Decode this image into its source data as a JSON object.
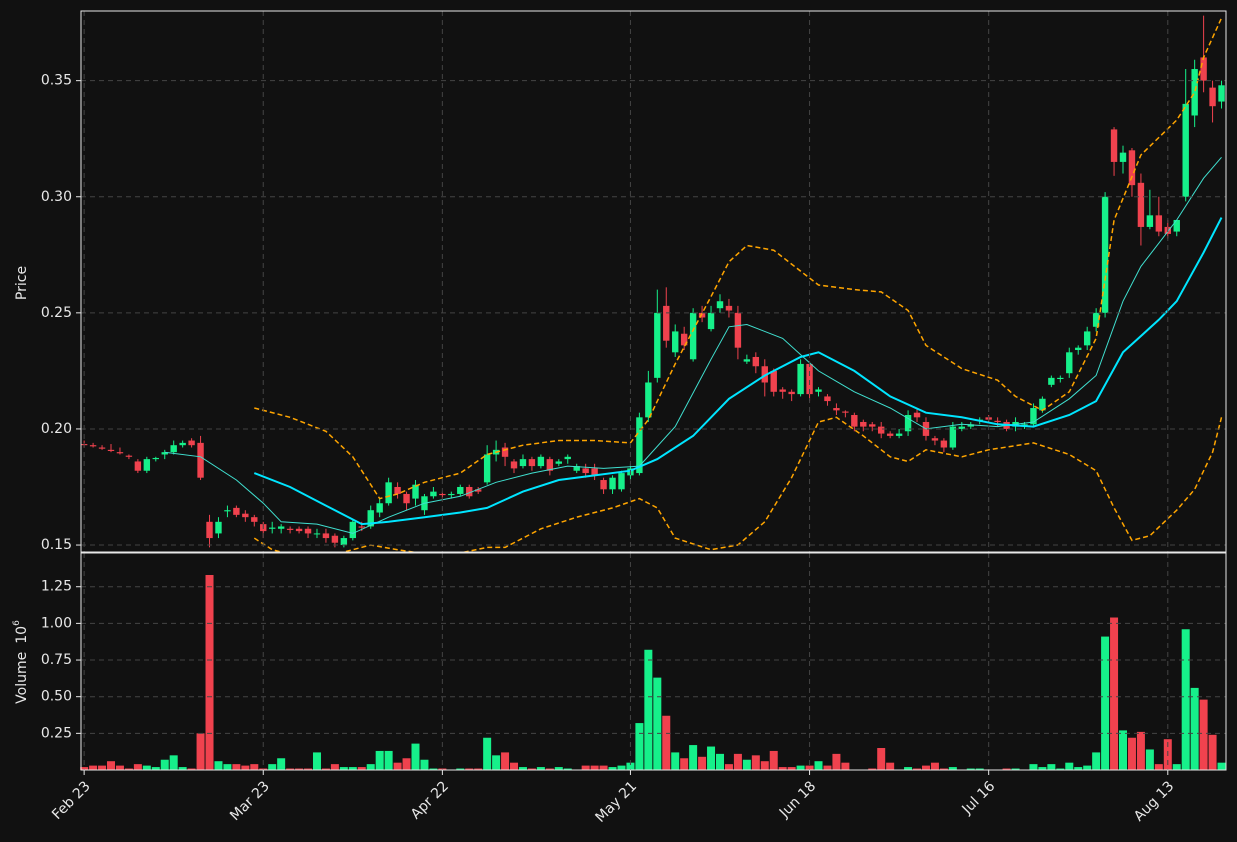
{
  "chart_data": {
    "type": "candlestick",
    "ylabel": "Price",
    "volume_label": "Volume",
    "volume_scale_base": "10",
    "volume_scale_exp": "6",
    "up_color": "#16f08a",
    "down_color": "#f0424e",
    "grid": true,
    "xlim": [
      -0.35,
      127.5
    ],
    "xticks": [
      {
        "value": 0,
        "label": "Feb 23"
      },
      {
        "value": 20,
        "label": "Mar 23"
      },
      {
        "value": 40,
        "label": "Apr 22"
      },
      {
        "value": 61,
        "label": "May 21"
      },
      {
        "value": 81,
        "label": "Jun 18"
      },
      {
        "value": 101,
        "label": "Jul 16"
      },
      {
        "value": 121,
        "label": "Aug 13"
      }
    ],
    "ylim": [
      0.147,
      0.38
    ],
    "yticks": [
      0.15,
      {
        "value": 0.2,
        "label": "0.20"
      },
      0.25,
      {
        "value": 0.3,
        "label": "0.30"
      },
      0.35
    ],
    "volume_ylim": [
      0,
      1.48
    ],
    "volume_yticks": [
      0.25,
      {
        "value": 0.5,
        "label": "0.50"
      },
      0.75,
      {
        "value": 1.0,
        "label": "1.00"
      },
      1.25
    ],
    "open": [
      0.1935,
      0.193,
      0.192,
      0.191,
      0.19,
      0.1885,
      0.186,
      0.182,
      0.187,
      0.189,
      0.19,
      0.193,
      0.195,
      0.194,
      0.16,
      0.155,
      0.1645,
      0.166,
      0.1635,
      0.162,
      0.159,
      0.157,
      0.157,
      0.157,
      0.157,
      0.157,
      0.155,
      0.155,
      0.154,
      0.15,
      0.153,
      0.158,
      0.158,
      0.164,
      0.168,
      0.175,
      0.172,
      0.17,
      0.165,
      0.171,
      0.172,
      0.1715,
      0.172,
      0.175,
      0.174,
      0.177,
      0.189,
      0.192,
      0.186,
      0.184,
      0.187,
      0.184,
      0.187,
      0.185,
      0.187,
      0.182,
      0.183,
      0.183,
      0.178,
      0.174,
      0.174,
      0.18,
      0.181,
      0.205,
      0.222,
      0.253,
      0.233,
      0.241,
      0.23,
      0.25,
      0.243,
      0.252,
      0.253,
      0.25,
      0.229,
      0.231,
      0.227,
      0.225,
      0.217,
      0.216,
      0.215,
      0.228,
      0.216,
      0.214,
      0.209,
      0.2075,
      0.206,
      0.203,
      0.202,
      0.201,
      0.198,
      0.197,
      0.199,
      0.207,
      0.203,
      0.196,
      0.195,
      0.192,
      0.2,
      0.201,
      0.2035,
      0.205,
      0.2035,
      0.203,
      0.201,
      0.2015,
      0.202,
      0.208,
      0.219,
      0.2215,
      0.224,
      0.234,
      0.236,
      0.244,
      0.25,
      0.329,
      0.315,
      0.32,
      0.306,
      0.287,
      0.292,
      0.287,
      0.285,
      0.3,
      0.335,
      0.36,
      0.347,
      0.341
    ],
    "high": [
      0.195,
      0.194,
      0.193,
      0.1935,
      0.192,
      0.189,
      0.187,
      0.188,
      0.188,
      0.191,
      0.195,
      0.195,
      0.196,
      0.197,
      0.163,
      0.162,
      0.167,
      0.167,
      0.165,
      0.163,
      0.16,
      0.16,
      0.159,
      0.158,
      0.158,
      0.158,
      0.157,
      0.157,
      0.155,
      0.154,
      0.161,
      0.16,
      0.167,
      0.17,
      0.179,
      0.177,
      0.173,
      0.178,
      0.172,
      0.175,
      0.173,
      0.173,
      0.176,
      0.176,
      0.175,
      0.193,
      0.195,
      0.194,
      0.187,
      0.189,
      0.188,
      0.189,
      0.188,
      0.187,
      0.189,
      0.185,
      0.185,
      0.185,
      0.179,
      0.18,
      0.182,
      0.185,
      0.207,
      0.225,
      0.26,
      0.261,
      0.245,
      0.244,
      0.252,
      0.253,
      0.253,
      0.258,
      0.256,
      0.253,
      0.232,
      0.233,
      0.23,
      0.226,
      0.218,
      0.217,
      0.23,
      0.229,
      0.218,
      0.215,
      0.211,
      0.208,
      0.207,
      0.204,
      0.203,
      0.203,
      0.199,
      0.2,
      0.208,
      0.209,
      0.205,
      0.197,
      0.196,
      0.203,
      0.203,
      0.203,
      0.205,
      0.206,
      0.205,
      0.204,
      0.205,
      0.203,
      0.211,
      0.214,
      0.223,
      0.223,
      0.235,
      0.236,
      0.244,
      0.252,
      0.302,
      0.33,
      0.322,
      0.321,
      0.31,
      0.303,
      0.3,
      0.29,
      0.29,
      0.355,
      0.359,
      0.378,
      0.35,
      0.35
    ],
    "low": [
      0.192,
      0.192,
      0.191,
      0.19,
      0.189,
      0.187,
      0.181,
      0.181,
      0.186,
      0.187,
      0.189,
      0.192,
      0.192,
      0.178,
      0.149,
      0.153,
      0.162,
      0.162,
      0.16,
      0.158,
      0.153,
      0.155,
      0.155,
      0.155,
      0.155,
      0.153,
      0.153,
      0.151,
      0.149,
      0.149,
      0.152,
      0.156,
      0.157,
      0.162,
      0.167,
      0.17,
      0.165,
      0.167,
      0.163,
      0.17,
      0.17,
      0.17,
      0.171,
      0.17,
      0.172,
      0.176,
      0.186,
      0.184,
      0.181,
      0.183,
      0.182,
      0.183,
      0.18,
      0.184,
      0.185,
      0.181,
      0.179,
      0.178,
      0.172,
      0.172,
      0.173,
      0.178,
      0.18,
      0.203,
      0.22,
      0.235,
      0.231,
      0.234,
      0.229,
      0.246,
      0.242,
      0.25,
      0.248,
      0.23,
      0.228,
      0.224,
      0.214,
      0.214,
      0.213,
      0.212,
      0.214,
      0.212,
      0.214,
      0.21,
      0.206,
      0.205,
      0.199,
      0.199,
      0.199,
      0.196,
      0.196,
      0.196,
      0.197,
      0.203,
      0.195,
      0.193,
      0.19,
      0.191,
      0.199,
      0.2,
      0.202,
      0.203,
      0.201,
      0.199,
      0.199,
      0.2,
      0.201,
      0.207,
      0.218,
      0.22,
      0.222,
      0.232,
      0.234,
      0.242,
      0.248,
      0.309,
      0.31,
      0.3,
      0.279,
      0.286,
      0.283,
      0.282,
      0.283,
      0.298,
      0.33,
      0.345,
      0.332,
      0.338
    ],
    "close": [
      0.193,
      0.1925,
      0.1915,
      0.1905,
      0.1895,
      0.188,
      0.182,
      0.187,
      0.1875,
      0.19,
      0.193,
      0.194,
      0.193,
      0.179,
      0.153,
      0.16,
      0.165,
      0.163,
      0.162,
      0.16,
      0.156,
      0.1575,
      0.158,
      0.1565,
      0.156,
      0.155,
      0.155,
      0.153,
      0.151,
      0.153,
      0.16,
      0.1575,
      0.165,
      0.168,
      0.177,
      0.172,
      0.168,
      0.176,
      0.171,
      0.173,
      0.1715,
      0.172,
      0.175,
      0.171,
      0.173,
      0.189,
      0.191,
      0.188,
      0.183,
      0.187,
      0.184,
      0.188,
      0.182,
      0.186,
      0.188,
      0.184,
      0.181,
      0.18,
      0.174,
      0.179,
      0.181,
      0.183,
      0.205,
      0.22,
      0.25,
      0.238,
      0.242,
      0.236,
      0.25,
      0.248,
      0.25,
      0.255,
      0.251,
      0.235,
      0.23,
      0.227,
      0.22,
      0.216,
      0.216,
      0.215,
      0.228,
      0.215,
      0.217,
      0.212,
      0.208,
      0.207,
      0.201,
      0.201,
      0.201,
      0.198,
      0.197,
      0.198,
      0.206,
      0.205,
      0.197,
      0.195,
      0.192,
      0.201,
      0.201,
      0.202,
      0.204,
      0.204,
      0.203,
      0.2,
      0.203,
      0.202,
      0.209,
      0.213,
      0.222,
      0.222,
      0.233,
      0.235,
      0.242,
      0.25,
      0.3,
      0.315,
      0.319,
      0.305,
      0.287,
      0.292,
      0.285,
      0.284,
      0.29,
      0.34,
      0.355,
      0.35,
      0.339,
      0.348
    ],
    "volume": [
      0.02,
      0.03,
      0.03,
      0.06,
      0.03,
      0.01,
      0.04,
      0.03,
      0.02,
      0.07,
      0.1,
      0.02,
      0.01,
      0.25,
      1.33,
      0.06,
      0.04,
      0.04,
      0.03,
      0.04,
      0.01,
      0.04,
      0.08,
      0.01,
      0.01,
      0.01,
      0.12,
      0.01,
      0.04,
      0.02,
      0.02,
      0.02,
      0.04,
      0.13,
      0.13,
      0.05,
      0.08,
      0.18,
      0.07,
      0.01,
      0.01,
      0.0,
      0.01,
      0.01,
      0.01,
      0.22,
      0.1,
      0.12,
      0.05,
      0.02,
      0.01,
      0.02,
      0.01,
      0.02,
      0.01,
      0.0,
      0.03,
      0.03,
      0.03,
      0.02,
      0.03,
      0.05,
      0.32,
      0.82,
      0.63,
      0.37,
      0.12,
      0.08,
      0.17,
      0.09,
      0.16,
      0.11,
      0.04,
      0.11,
      0.07,
      0.1,
      0.06,
      0.13,
      0.02,
      0.02,
      0.03,
      0.03,
      0.06,
      0.03,
      0.11,
      0.05,
      0.0,
      0.0,
      0.01,
      0.15,
      0.05,
      0.0,
      0.02,
      0.01,
      0.03,
      0.05,
      0.01,
      0.02,
      0.0,
      0.01,
      0.01,
      0.0,
      0.0,
      0.01,
      0.01,
      0.0,
      0.04,
      0.02,
      0.04,
      0.01,
      0.05,
      0.02,
      0.03,
      0.12,
      0.91,
      1.04,
      0.27,
      0.22,
      0.26,
      0.14,
      0.04,
      0.21,
      0.04,
      0.96,
      0.56,
      0.48,
      0.24,
      0.05
    ],
    "lines": [
      {
        "color": "#40e0d0",
        "width": 1,
        "dashed": false,
        "x": [
          9,
          13,
          17,
          20,
          22,
          26,
          30,
          34,
          38,
          42,
          46,
          50,
          54,
          58,
          62,
          66,
          70,
          72,
          74,
          78,
          82,
          86,
          90,
          94,
          98,
          102,
          106,
          110,
          113,
          116,
          118,
          122,
          125,
          127
        ],
        "values": [
          0.19,
          0.188,
          0.178,
          0.168,
          0.16,
          0.159,
          0.155,
          0.162,
          0.168,
          0.171,
          0.177,
          0.181,
          0.184,
          0.183,
          0.184,
          0.201,
          0.23,
          0.244,
          0.245,
          0.239,
          0.225,
          0.216,
          0.209,
          0.2,
          0.202,
          0.201,
          0.203,
          0.213,
          0.223,
          0.255,
          0.27,
          0.29,
          0.308,
          0.317
        ]
      },
      {
        "color": "#00e5ff",
        "width": 2,
        "dashed": false,
        "x": [
          19,
          23,
          27,
          31,
          34,
          38,
          42,
          45,
          49,
          53,
          57,
          61,
          64,
          68,
          72,
          76,
          80,
          82,
          86,
          90,
          94,
          98,
          102,
          106,
          110,
          113,
          116,
          120,
          122,
          125,
          127
        ],
        "values": [
          0.181,
          0.175,
          0.167,
          0.159,
          0.16,
          0.162,
          0.164,
          0.166,
          0.173,
          0.178,
          0.18,
          0.182,
          0.187,
          0.197,
          0.213,
          0.223,
          0.231,
          0.233,
          0.225,
          0.214,
          0.207,
          0.205,
          0.202,
          0.201,
          0.206,
          0.212,
          0.233,
          0.247,
          0.255,
          0.276,
          0.291
        ]
      },
      {
        "color": "#ffa500",
        "width": 1.5,
        "dashed": true,
        "x": [
          19,
          23,
          27,
          30,
          33,
          35,
          38,
          42,
          45,
          49,
          53,
          57,
          61,
          63,
          66,
          70,
          72,
          74,
          77,
          80,
          82,
          86,
          89,
          92,
          94,
          98,
          102,
          104,
          107,
          110,
          113,
          115,
          118,
          122,
          124,
          125,
          127
        ],
        "values": [
          0.209,
          0.205,
          0.199,
          0.188,
          0.17,
          0.172,
          0.177,
          0.181,
          0.189,
          0.193,
          0.195,
          0.195,
          0.194,
          0.204,
          0.228,
          0.257,
          0.272,
          0.279,
          0.277,
          0.268,
          0.262,
          0.26,
          0.259,
          0.251,
          0.236,
          0.226,
          0.221,
          0.214,
          0.208,
          0.216,
          0.239,
          0.29,
          0.318,
          0.333,
          0.345,
          0.36,
          0.377
        ]
      },
      {
        "color": "#ffa500",
        "width": 1.5,
        "dashed": true,
        "x": [
          19,
          21,
          23,
          28,
          32,
          35,
          40,
          45,
          47,
          51,
          55,
          59,
          62,
          64,
          66,
          70,
          73,
          76,
          79,
          82,
          84,
          87,
          90,
          92,
          94,
          98,
          101,
          106,
          110,
          113,
          115,
          117,
          119,
          122,
          124,
          126,
          127
        ],
        "values": [
          0.153,
          0.148,
          0.146,
          0.146,
          0.15,
          0.148,
          0.145,
          0.149,
          0.149,
          0.157,
          0.162,
          0.166,
          0.17,
          0.166,
          0.153,
          0.148,
          0.15,
          0.16,
          0.179,
          0.203,
          0.205,
          0.197,
          0.188,
          0.186,
          0.191,
          0.188,
          0.191,
          0.194,
          0.189,
          0.182,
          0.166,
          0.152,
          0.154,
          0.165,
          0.174,
          0.19,
          0.205
        ]
      }
    ]
  }
}
